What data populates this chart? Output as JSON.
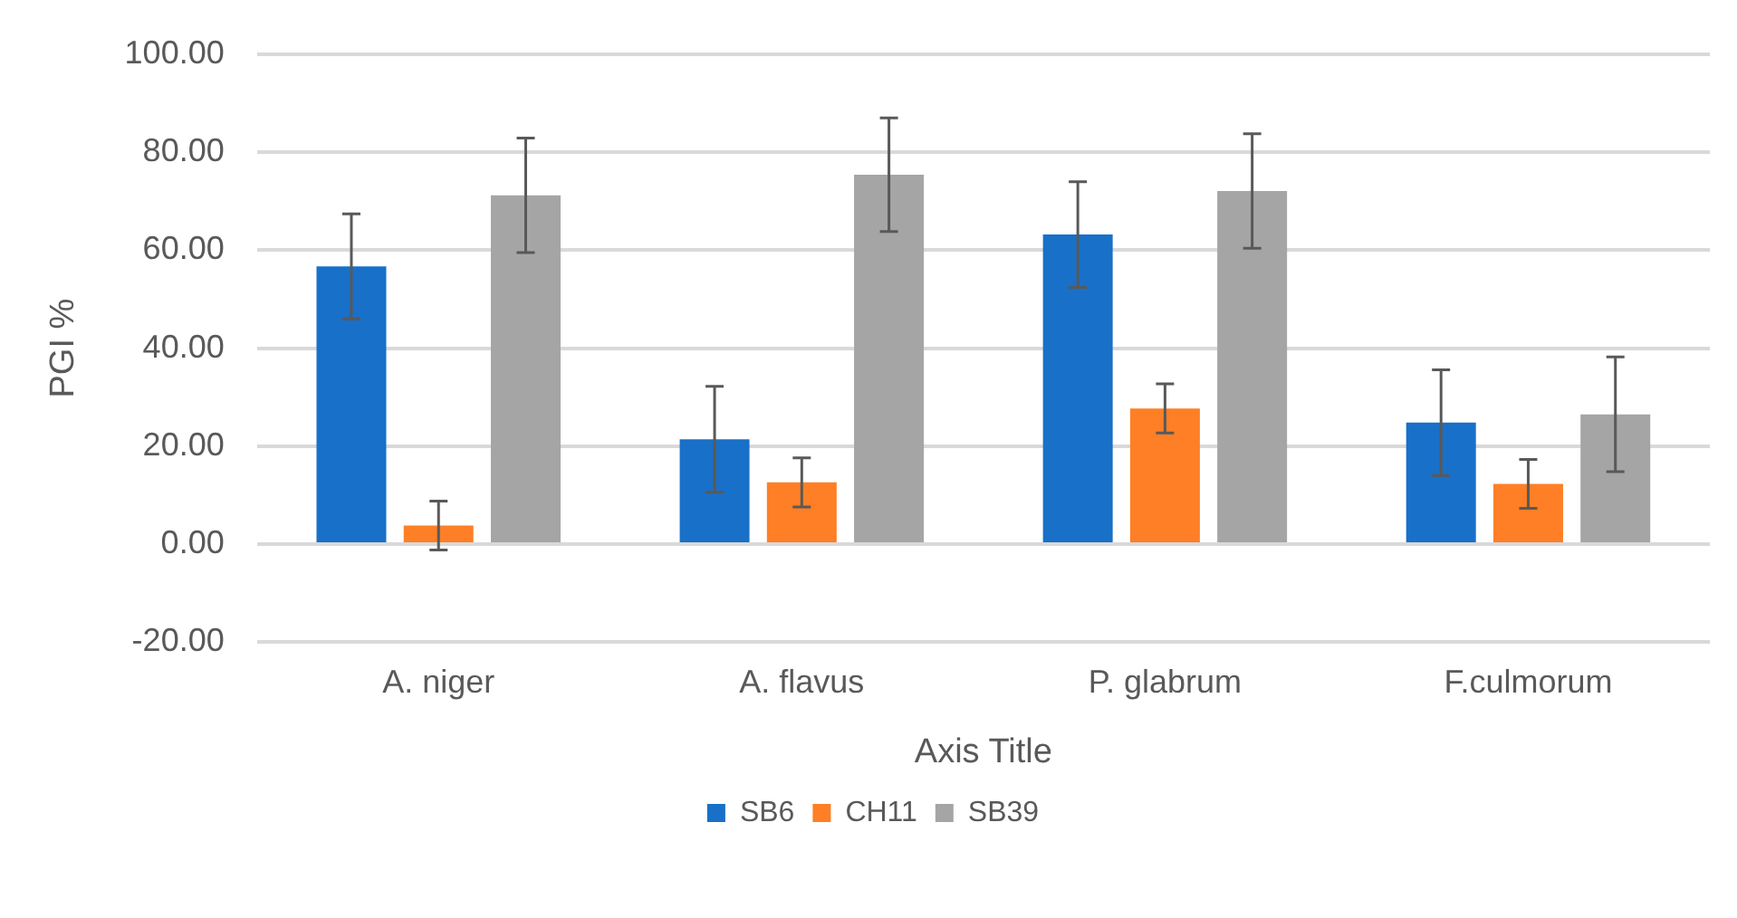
{
  "chart_data": {
    "type": "bar",
    "xlabel": "Axis Title",
    "ylabel": "PGI %",
    "categories": [
      "A. niger",
      "A. flavus",
      "P. glabrum",
      "F.culmorum"
    ],
    "series": [
      {
        "name": "SB6",
        "color": "#1870c8",
        "values": [
          56.7,
          21.4,
          63.2,
          24.8
        ],
        "errors": [
          10.7,
          10.8,
          10.8,
          10.8
        ]
      },
      {
        "name": "CH11",
        "color": "#fe7f25",
        "values": [
          3.8,
          12.6,
          27.7,
          12.3
        ],
        "errors": [
          5,
          5,
          5,
          5
        ]
      },
      {
        "name": "SB39",
        "color": "#a5a5a5",
        "values": [
          71.2,
          75.4,
          72.1,
          26.5
        ],
        "errors": [
          11.7,
          11.6,
          11.7,
          11.7
        ]
      }
    ],
    "ylim": [
      -20,
      100
    ],
    "yticks": [
      {
        "value": -20,
        "label": "-20.00"
      },
      {
        "value": 0,
        "label": "0.00"
      },
      {
        "value": 20,
        "label": "20.00"
      },
      {
        "value": 40,
        "label": "40.00"
      },
      {
        "value": 60,
        "label": "60.00"
      },
      {
        "value": 80,
        "label": "80.00"
      },
      {
        "value": 100,
        "label": "100.00"
      }
    ],
    "grid": "y",
    "legend": "bottom"
  }
}
